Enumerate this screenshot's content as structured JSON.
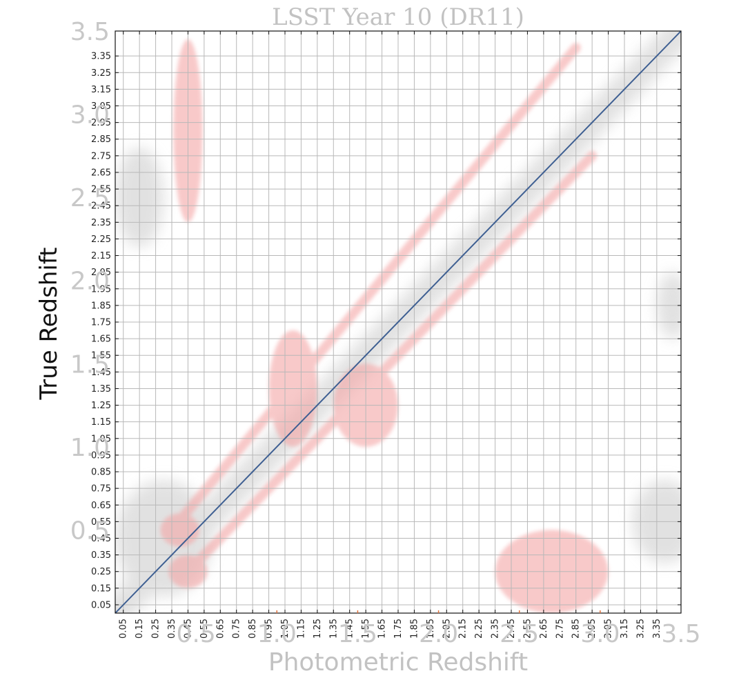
{
  "chart_data": {
    "type": "heatmap",
    "title": "LSST Year 10 (DR11)",
    "xlabel": "Photometric Redshift",
    "ylabel": "True Redshift",
    "xlim": [
      0,
      3.5
    ],
    "ylim": [
      0,
      3.5
    ],
    "grid": true,
    "x_ticks": [
      "0.05",
      "0.15",
      "0.25",
      "0.35",
      "0.45",
      "0.55",
      "0.65",
      "0.75",
      "0.85",
      "0.95",
      "1.05",
      "1.15",
      "1.25",
      "1.35",
      "1.45",
      "1.55",
      "1.65",
      "1.75",
      "1.85",
      "1.95",
      "2.05",
      "2.15",
      "2.25",
      "2.35",
      "2.45",
      "2.55",
      "2.65",
      "2.75",
      "2.85",
      "2.95",
      "3.05",
      "3.15",
      "3.25",
      "3.35"
    ],
    "y_ticks": [
      "0.05",
      "0.15",
      "0.25",
      "0.35",
      "0.45",
      "0.55",
      "0.65",
      "0.75",
      "0.85",
      "0.95",
      "1.05",
      "1.15",
      "1.25",
      "1.35",
      "1.45",
      "1.55",
      "1.65",
      "1.75",
      "1.85",
      "1.95",
      "2.05",
      "2.15",
      "2.25",
      "2.35",
      "2.45",
      "2.55",
      "2.65",
      "2.75",
      "2.85",
      "2.95",
      "3.05",
      "3.15",
      "3.25",
      "3.35"
    ],
    "x_major_ticks": [
      "0.5",
      "1.0",
      "1.5",
      "2.0",
      "2.5",
      "3.0",
      "3.5"
    ],
    "y_major_ticks": [
      "0.5",
      "1.0",
      "1.5",
      "2.0",
      "2.5",
      "3.0",
      "3.5"
    ],
    "reference_line": {
      "x": [
        0,
        3.5
      ],
      "y": [
        0,
        3.5
      ],
      "color": "#3e5f92"
    },
    "density_color": "#d8d8d8",
    "scatter_color": "#f4a6a6",
    "density_regions": [
      {
        "label": "main diagonal",
        "x0": 0.0,
        "y0": 0.0,
        "x1": 3.5,
        "y1": 3.5,
        "width": 0.18
      },
      {
        "label": "low-z cluster",
        "cx": 0.3,
        "cy": 0.45,
        "rx": 0.3,
        "ry": 0.35
      },
      {
        "label": "upper-left cluster",
        "cx": 0.15,
        "cy": 2.5,
        "rx": 0.15,
        "ry": 0.3
      },
      {
        "label": "right cluster",
        "cx": 3.4,
        "cy": 0.55,
        "rx": 0.2,
        "ry": 0.25
      },
      {
        "label": "right cluster upper",
        "cx": 3.45,
        "cy": 1.85,
        "rx": 0.1,
        "ry": 0.2
      }
    ],
    "scatter_regions": [
      {
        "label": "upper diagonal band",
        "x0": 0.35,
        "y0": 0.5,
        "x1": 2.85,
        "y1": 3.4,
        "width": 0.06
      },
      {
        "label": "lower diagonal band",
        "x0": 0.4,
        "y0": 0.2,
        "x1": 2.95,
        "y1": 2.75,
        "width": 0.06
      },
      {
        "label": "low-z vertical streak",
        "cx": 0.45,
        "cy": 2.9,
        "rx": 0.09,
        "ry": 0.55
      },
      {
        "label": "low-z blob upper",
        "cx": 0.4,
        "cy": 0.5,
        "rx": 0.12,
        "ry": 0.1
      },
      {
        "label": "low-z blob lower",
        "cx": 0.45,
        "cy": 0.25,
        "rx": 0.12,
        "ry": 0.1
      },
      {
        "label": "mid cluster",
        "cx": 1.1,
        "cy": 1.35,
        "rx": 0.15,
        "ry": 0.35
      },
      {
        "label": "mid cluster right",
        "cx": 1.55,
        "cy": 1.25,
        "rx": 0.2,
        "ry": 0.25
      },
      {
        "label": "high-photo-z low-true",
        "cx": 2.7,
        "cy": 0.25,
        "rx": 0.35,
        "ry": 0.25
      }
    ],
    "small_markers_x": [
      1.0,
      1.5,
      2.0,
      2.5,
      3.0
    ]
  }
}
